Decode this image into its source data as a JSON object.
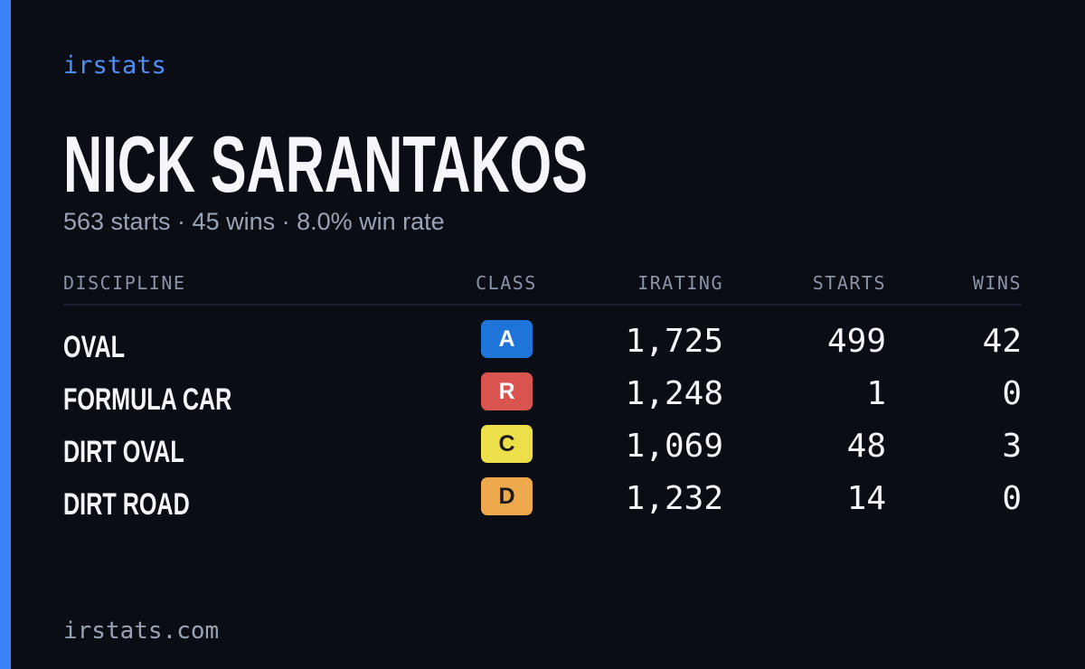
{
  "brand": "irstats",
  "player": {
    "name": "NICK SARANTAKOS",
    "summary": "563 starts · 45 wins · 8.0% win rate"
  },
  "table": {
    "headers": [
      "DISCIPLINE",
      "CLASS",
      "IRATING",
      "STARTS",
      "WINS"
    ],
    "rows": [
      {
        "discipline": "OVAL",
        "class": "A",
        "class_color": "#1f74d9",
        "irating": "1,725",
        "starts": "499",
        "wins": "42"
      },
      {
        "discipline": "FORMULA CAR",
        "class": "R",
        "class_color": "#d9534f",
        "irating": "1,248",
        "starts": "1",
        "wins": "0"
      },
      {
        "discipline": "DIRT OVAL",
        "class": "C",
        "class_color": "#ecdf4a",
        "irating": "1,069",
        "starts": "48",
        "wins": "3"
      },
      {
        "discipline": "DIRT ROAD",
        "class": "D",
        "class_color": "#eda94b",
        "irating": "1,232",
        "starts": "14",
        "wins": "0"
      }
    ]
  },
  "footer": "irstats.com"
}
